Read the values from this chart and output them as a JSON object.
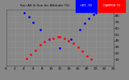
{
  "title": "Sun Alt & Sun Inc Altitude (%)",
  "legend_blue": "HOT...PV",
  "legend_red": "DAMPEN TO",
  "bg_color": "#888888",
  "plot_bg": "#888888",
  "grid_color": "#aaaaaa",
  "blue_color": "#0000ff",
  "red_color": "#ff0000",
  "title_color": "#000000",
  "xlim": [
    0,
    24
  ],
  "ylim": [
    0,
    90
  ],
  "ytick_vals": [
    10,
    20,
    30,
    40,
    50,
    60,
    70,
    80,
    90
  ],
  "xtick_vals": [
    0,
    2,
    4,
    6,
    8,
    10,
    12,
    14,
    16,
    18,
    20,
    22,
    24
  ],
  "xtick_labels": [
    "0:",
    "2:",
    "4:",
    "6:",
    "8:",
    "10:",
    "12:",
    "14:",
    "16:",
    "18:",
    "20:",
    "22:",
    "24:"
  ],
  "blue_x": [
    4.0,
    5.0,
    6.0,
    7.5,
    9.5,
    12.0,
    14.5,
    16.5,
    17.5,
    18.5,
    19.5,
    20.0
  ],
  "blue_y": [
    85,
    78,
    70,
    58,
    42,
    28,
    42,
    58,
    68,
    76,
    82,
    85
  ],
  "red_x": [
    4.5,
    5.5,
    6.5,
    7.5,
    8.5,
    9.5,
    10.5,
    11.5,
    12.0,
    13.0,
    14.0,
    15.0,
    16.0,
    17.0,
    18.0,
    19.0
  ],
  "red_y": [
    12,
    18,
    25,
    33,
    38,
    42,
    44,
    46,
    46,
    44,
    40,
    36,
    30,
    23,
    16,
    10
  ]
}
